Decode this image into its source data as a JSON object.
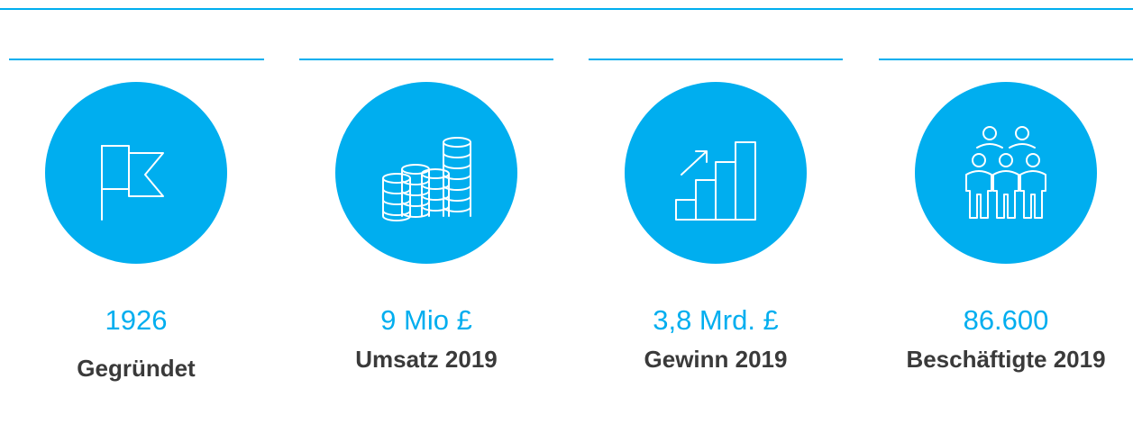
{
  "items": [
    {
      "value": "1926",
      "label": "Gegründet"
    },
    {
      "value": "9 Mio £",
      "label": "Umsatz 2019"
    },
    {
      "value": "3,8 Mrd. £",
      "label": "Gewinn 2019"
    },
    {
      "value": "86.600",
      "label": "Beschäftigte 2019"
    }
  ]
}
